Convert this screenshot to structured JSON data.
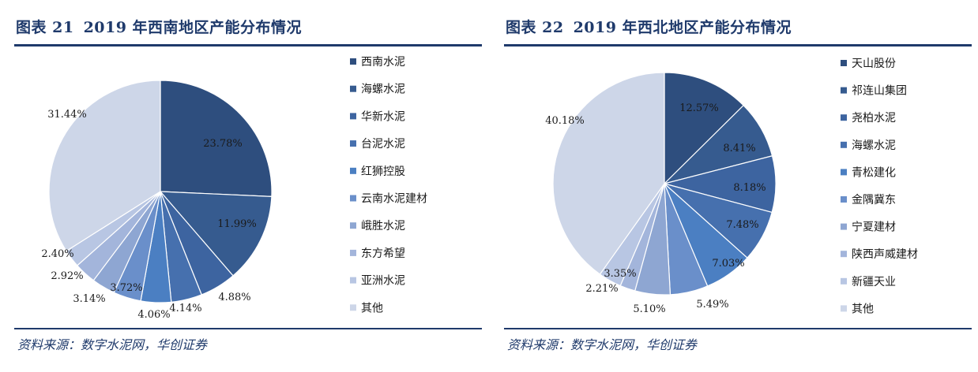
{
  "chart_data": [
    {
      "type": "pie",
      "figure_label": "图表 21",
      "title": "2019 年西南地区产能分布情况",
      "source": "资料来源：数字水泥网，华创证券",
      "legend_position": "right",
      "slices": [
        {
          "name": "西南水泥",
          "value": 23.78,
          "label": "23.78%",
          "color": "#2e4e7e"
        },
        {
          "name": "海螺水泥",
          "value": 11.99,
          "label": "11.99%",
          "color": "#365b8f"
        },
        {
          "name": "华新水泥",
          "value": 4.88,
          "label": "4.88%",
          "color": "#3d64a0"
        },
        {
          "name": "台泥水泥",
          "value": 4.14,
          "label": "4.14%",
          "color": "#4670ae"
        },
        {
          "name": "红狮控股",
          "value": 4.06,
          "label": "4.06%",
          "color": "#4b7fc2"
        },
        {
          "name": "云南水泥建材",
          "value": 3.72,
          "label": "3.72%",
          "color": "#6a8fca"
        },
        {
          "name": "峨胜水泥",
          "value": 3.14,
          "label": "3.14%",
          "color": "#8ea6d2"
        },
        {
          "name": "东方希望",
          "value": 2.92,
          "label": "2.92%",
          "color": "#a3b5db"
        },
        {
          "name": "亚洲水泥",
          "value": 2.4,
          "label": "2.40%",
          "color": "#b8c6e3"
        },
        {
          "name": "其他",
          "value": 31.44,
          "label": "31.44%",
          "color": "#cdd6e8"
        }
      ]
    },
    {
      "type": "pie",
      "figure_label": "图表 22",
      "title": "2019 年西北地区产能分布情况",
      "source": "资料来源：数字水泥网，华创证券",
      "legend_position": "right",
      "slices": [
        {
          "name": "天山股份",
          "value": 12.57,
          "label": "12.57%",
          "color": "#2e4e7e"
        },
        {
          "name": "祁连山集团",
          "value": 8.41,
          "label": "8.41%",
          "color": "#365b8f"
        },
        {
          "name": "尧柏水泥",
          "value": 8.18,
          "label": "8.18%",
          "color": "#3d64a0"
        },
        {
          "name": "海螺水泥",
          "value": 7.48,
          "label": "7.48%",
          "color": "#4670ae"
        },
        {
          "name": "青松建化",
          "value": 7.03,
          "label": "7.03%",
          "color": "#4b7fc2"
        },
        {
          "name": "金隅冀东",
          "value": 5.49,
          "label": "5.49%",
          "color": "#6a8fca"
        },
        {
          "name": "宁夏建材",
          "value": 5.1,
          "label": "5.10%",
          "color": "#8ea6d2"
        },
        {
          "name": "陕西声威建材",
          "value": 2.21,
          "label": "2.21%",
          "color": "#a3b5db"
        },
        {
          "name": "新疆天业",
          "value": 3.35,
          "label": "3.35%",
          "color": "#b8c6e3"
        },
        {
          "name": "其他",
          "value": 40.18,
          "label": "40.18%",
          "color": "#cdd6e8"
        }
      ]
    }
  ]
}
